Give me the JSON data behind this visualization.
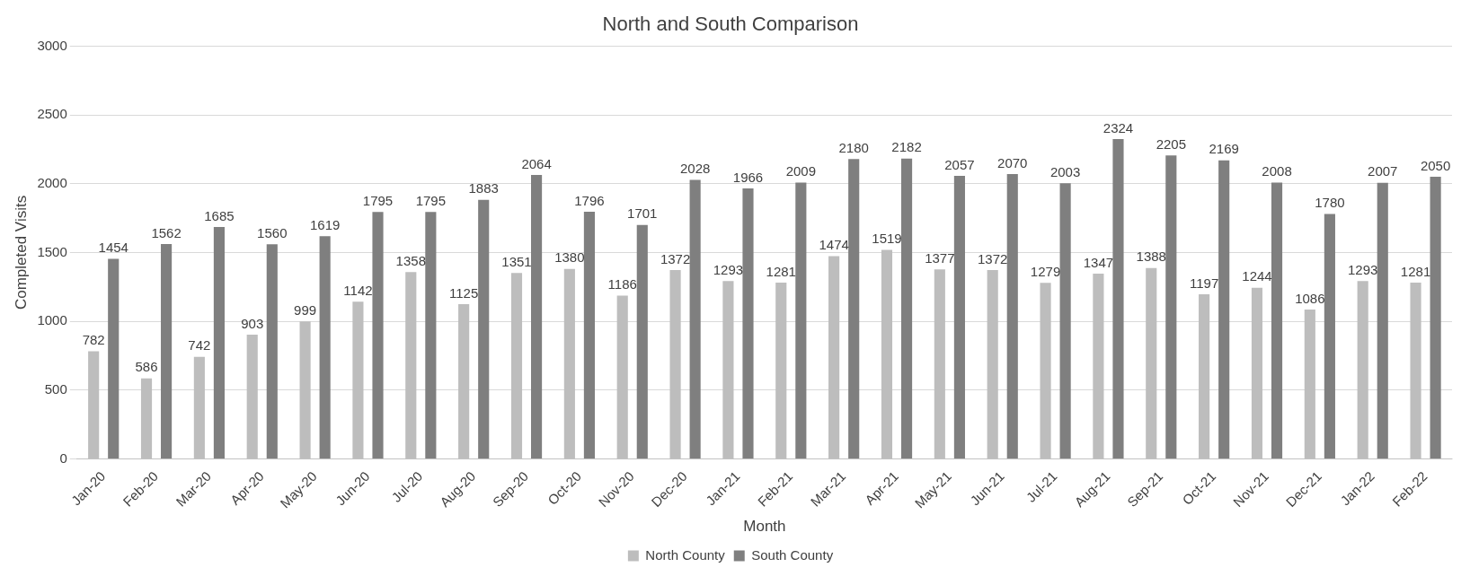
{
  "chart_data": {
    "type": "bar",
    "title": "North and South Comparison",
    "xlabel": "Month",
    "ylabel": "Completed Visits",
    "categories": [
      "Jan-20",
      "Feb-20",
      "Mar-20",
      "Apr-20",
      "May-20",
      "Jun-20",
      "Jul-20",
      "Aug-20",
      "Sep-20",
      "Oct-20",
      "Nov-20",
      "Dec-20",
      "Jan-21",
      "Feb-21",
      "Mar-21",
      "Apr-21",
      "May-21",
      "Jun-21",
      "Jul-21",
      "Aug-21",
      "Sep-21",
      "Oct-21",
      "Nov-21",
      "Dec-21",
      "Jan-22",
      "Feb-22"
    ],
    "series": [
      {
        "name": "North County",
        "color": "#bdbdbd",
        "values": [
          782,
          586,
          742,
          903,
          999,
          1142,
          1358,
          1125,
          1351,
          1380,
          1186,
          1372,
          1293,
          1281,
          1474,
          1519,
          1377,
          1372,
          1279,
          1347,
          1388,
          1197,
          1244,
          1086,
          1293,
          1281
        ]
      },
      {
        "name": "South County",
        "color": "#7f7f7f",
        "values": [
          1454,
          1562,
          1685,
          1560,
          1619,
          1795,
          1795,
          1883,
          2064,
          1796,
          1701,
          2028,
          1966,
          2009,
          2180,
          2182,
          2057,
          2070,
          2003,
          2324,
          2205,
          2169,
          2008,
          1780,
          2007,
          2050
        ]
      }
    ],
    "ylim": [
      0,
      3000
    ],
    "yticks": [
      0,
      500,
      1000,
      1500,
      2000,
      2500,
      3000
    ],
    "grid": "y",
    "legend": "bottom",
    "data_labels": true
  }
}
